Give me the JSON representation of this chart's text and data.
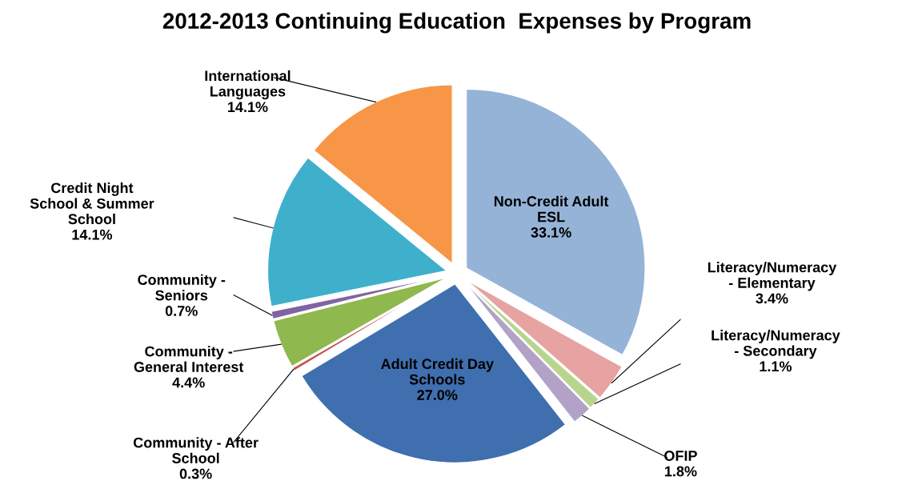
{
  "chart_data": {
    "type": "pie",
    "title": "2012-2013 Continuing Education  Expenses by Program",
    "categories": [
      "Non-Credit Adult\nESL",
      "Literacy/Numeracy\n- Elementary",
      "Literacy/Numeracy\n- Secondary",
      "OFIP",
      "Adult Credit Day\nSchools",
      "Community - After\nSchool",
      "Community -\nGeneral Interest",
      "Community -\nSeniors",
      "Credit Night\nSchool & Summer\nSchool",
      "International\nLanguages"
    ],
    "values": [
      33.1,
      3.4,
      1.1,
      1.8,
      27.0,
      0.3,
      4.4,
      0.7,
      14.1,
      14.1
    ],
    "value_labels": [
      "33.1%",
      "3.4%",
      "1.1%",
      "1.8%",
      "27.0%",
      "0.3%",
      "4.4%",
      "0.7%",
      "14.1%",
      "14.1%"
    ],
    "colors": [
      "#95b3d7",
      "#e6a3a1",
      "#b8d58e",
      "#b3a2c7",
      "#3f6fae",
      "#c0504d",
      "#8fb84e",
      "#8064a2",
      "#3fb0cb",
      "#f79646"
    ],
    "legend": false
  }
}
